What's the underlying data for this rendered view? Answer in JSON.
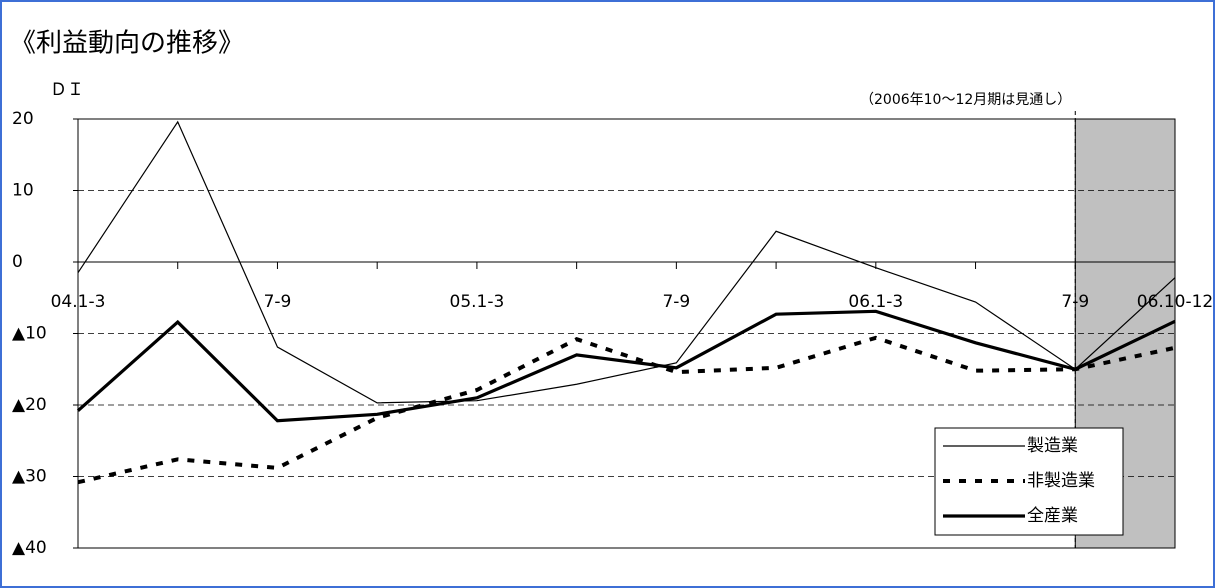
{
  "chart_data": {
    "type": "line",
    "title": "《利益動向の推移》",
    "y_label": "ＤＩ",
    "note": "（2006年10～12月期は見通し）",
    "categories": [
      "04.1-3",
      null,
      "7-9",
      null,
      "05.1-3",
      null,
      "7-9",
      null,
      "06.1-3",
      null,
      "7-9",
      "06.10-12"
    ],
    "ylim": [
      -40,
      20
    ],
    "yticks": [
      {
        "value": -40,
        "label": "▲40"
      },
      {
        "value": -30,
        "label": "▲30"
      },
      {
        "value": -20,
        "label": "▲20"
      },
      {
        "value": -10,
        "label": "▲10"
      },
      0,
      10,
      20
    ],
    "grid": true,
    "legend": "lower right",
    "series": [
      {
        "name": "製造業",
        "color": "#000000",
        "style": "thin",
        "values": [
          -1.5,
          19.6,
          -11.9,
          -19.7,
          -19.4,
          -17.1,
          -14.1,
          4.3,
          -0.8,
          -5.6,
          -15.0,
          -2.2
        ]
      },
      {
        "name": "非製造業",
        "color": "#000000",
        "style": "dotted",
        "values": [
          -30.8,
          -27.6,
          -28.8,
          -21.8,
          -17.9,
          -10.8,
          -15.4,
          -14.8,
          -10.6,
          -15.2,
          -15.0,
          -12.0
        ]
      },
      {
        "name": "全産業",
        "color": "#000000",
        "style": "thick",
        "values": [
          -20.8,
          -8.4,
          -22.2,
          -21.3,
          -19.0,
          -13.0,
          -14.8,
          -7.3,
          -6.9,
          -11.3,
          -15.0,
          -8.3
        ]
      }
    ]
  }
}
